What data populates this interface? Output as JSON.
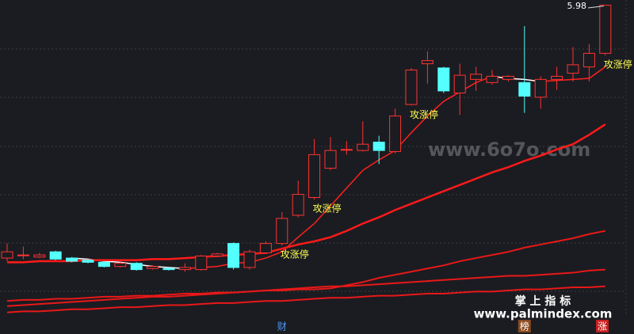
{
  "chart_data": {
    "type": "candlestick",
    "ylim": [
      3.0,
      6.0
    ],
    "up_color": "#ff3232",
    "down_color": "#54ffff",
    "open": [
      3.56,
      3.59,
      3.57,
      3.62,
      3.56,
      3.54,
      3.52,
      3.48,
      3.51,
      3.46,
      3.46,
      3.45,
      3.45,
      3.58,
      3.7,
      3.47,
      3.61,
      3.7,
      3.97,
      4.14,
      4.42,
      4.6,
      4.59,
      4.67,
      4.58,
      5.03,
      5.42,
      5.38,
      5.14,
      5.27,
      5.24,
      5.27,
      5.24,
      5.1,
      5.27,
      5.33,
      5.39,
      5.52
    ],
    "high": [
      3.7,
      3.67,
      3.61,
      3.63,
      3.57,
      3.55,
      3.53,
      3.54,
      3.52,
      3.49,
      3.47,
      3.51,
      3.59,
      3.61,
      3.71,
      3.64,
      3.72,
      4.0,
      4.3,
      4.7,
      4.72,
      4.68,
      4.87,
      4.73,
      4.99,
      5.38,
      5.54,
      5.39,
      5.42,
      5.39,
      5.36,
      5.31,
      5.78,
      5.3,
      5.39,
      5.58,
      5.61,
      5.98
    ],
    "low": [
      3.53,
      3.55,
      3.56,
      3.54,
      3.52,
      3.51,
      3.47,
      3.47,
      3.44,
      3.45,
      3.44,
      3.43,
      3.44,
      3.57,
      3.45,
      3.45,
      3.6,
      3.68,
      3.95,
      4.12,
      4.4,
      4.55,
      4.58,
      4.46,
      4.56,
      5.02,
      5.23,
      5.14,
      4.93,
      5.16,
      5.22,
      5.25,
      4.95,
      4.99,
      5.17,
      5.25,
      5.25,
      5.5
    ],
    "close": [
      3.62,
      3.59,
      3.59,
      3.55,
      3.53,
      3.52,
      3.48,
      3.51,
      3.45,
      3.48,
      3.45,
      3.47,
      3.58,
      3.6,
      3.47,
      3.62,
      3.7,
      3.94,
      4.17,
      4.55,
      4.59,
      4.6,
      4.65,
      4.59,
      4.92,
      5.36,
      5.45,
      5.16,
      5.31,
      5.32,
      5.3,
      5.3,
      5.11,
      5.27,
      5.3,
      5.41,
      5.52,
      5.98
    ],
    "signals": [
      null,
      null,
      null,
      null,
      null,
      null,
      null,
      null,
      null,
      null,
      null,
      null,
      null,
      null,
      null,
      null,
      null,
      "攻涨停",
      null,
      "攻涨停",
      null,
      null,
      null,
      null,
      null,
      "攻涨停",
      null,
      null,
      null,
      null,
      null,
      null,
      null,
      null,
      null,
      null,
      null,
      "攻涨停"
    ],
    "signal_color": "#ffff50",
    "events": [
      null,
      null,
      null,
      null,
      null,
      null,
      null,
      null,
      null,
      null,
      null,
      null,
      null,
      null,
      null,
      null,
      null,
      {
        "text": "财",
        "color": "#4d9cff",
        "background": "#1b1c21"
      },
      null,
      null,
      null,
      null,
      null,
      null,
      null,
      null,
      null,
      null,
      null,
      null,
      null,
      null,
      {
        "text": "榜",
        "color": "#ffffff",
        "background": "#8a4a1e"
      },
      null,
      null,
      null,
      null,
      {
        "text": "涨",
        "color": "#ffffff",
        "background": "#c81e1e"
      }
    ],
    "series": [
      {
        "color": "#ff2020",
        "down_color": "#ffffff",
        "width": 1.5,
        "values": [
          null,
          null,
          null,
          null,
          3.56,
          3.55,
          3.53,
          3.52,
          3.5,
          3.48,
          3.47,
          3.46,
          3.47,
          3.48,
          3.51,
          3.52,
          3.56,
          3.62,
          3.76,
          3.89,
          4.06,
          4.23,
          4.4,
          4.5,
          4.59,
          4.76,
          4.92,
          5.06,
          5.15,
          5.24,
          5.3,
          5.28,
          5.27,
          5.25,
          5.26,
          5.27,
          5.28,
          5.39
        ]
      },
      {
        "color": "#ff1a1a",
        "width": 2.5,
        "values": [
          3.52,
          3.52,
          3.53,
          3.53,
          3.53,
          3.54,
          3.54,
          3.54,
          3.54,
          3.55,
          3.55,
          3.56,
          3.57,
          3.58,
          3.59,
          3.6,
          3.61,
          3.65,
          3.69,
          3.72,
          3.76,
          3.82,
          3.89,
          3.95,
          4.02,
          4.08,
          4.14,
          4.2,
          4.26,
          4.32,
          4.38,
          4.43,
          4.49,
          4.54,
          4.6,
          4.65,
          4.74,
          4.84
        ]
      },
      {
        "color": "#e81818",
        "width": 2,
        "values": [
          3.15,
          3.16,
          3.16,
          3.17,
          3.17,
          3.18,
          3.19,
          3.19,
          3.2,
          3.2,
          3.21,
          3.22,
          3.22,
          3.23,
          3.23,
          3.24,
          3.25,
          3.25,
          3.26,
          3.26,
          3.27,
          3.3,
          3.33,
          3.37,
          3.4,
          3.43,
          3.46,
          3.49,
          3.53,
          3.56,
          3.59,
          3.62,
          3.66,
          3.69,
          3.72,
          3.75,
          3.79,
          3.82
        ]
      },
      {
        "color": "#e81818",
        "width": 2,
        "values": [
          3.1,
          3.11,
          3.12,
          3.13,
          3.14,
          3.15,
          3.16,
          3.17,
          3.18,
          3.19,
          3.19,
          3.2,
          3.21,
          3.22,
          3.23,
          3.24,
          3.25,
          3.26,
          3.27,
          3.28,
          3.29,
          3.29,
          3.3,
          3.31,
          3.32,
          3.33,
          3.34,
          3.35,
          3.36,
          3.37,
          3.38,
          3.39,
          3.39,
          3.4,
          3.41,
          3.42,
          3.44,
          3.45
        ]
      },
      {
        "color": "#e81818",
        "width": 2,
        "values": [
          3.04,
          3.05,
          3.05,
          3.06,
          3.07,
          3.07,
          3.08,
          3.09,
          3.09,
          3.1,
          3.11,
          3.11,
          3.12,
          3.13,
          3.13,
          3.14,
          3.15,
          3.15,
          3.16,
          3.17,
          3.18,
          3.18,
          3.19,
          3.2,
          3.2,
          3.21,
          3.22,
          3.22,
          3.23,
          3.24,
          3.24,
          3.25,
          3.26,
          3.26,
          3.27,
          3.28,
          3.28,
          3.29
        ]
      }
    ]
  },
  "watermarks": {
    "site": "www.6o7o.com",
    "brand": "掌 上 指 标",
    "url": "www.palmindex.com"
  }
}
